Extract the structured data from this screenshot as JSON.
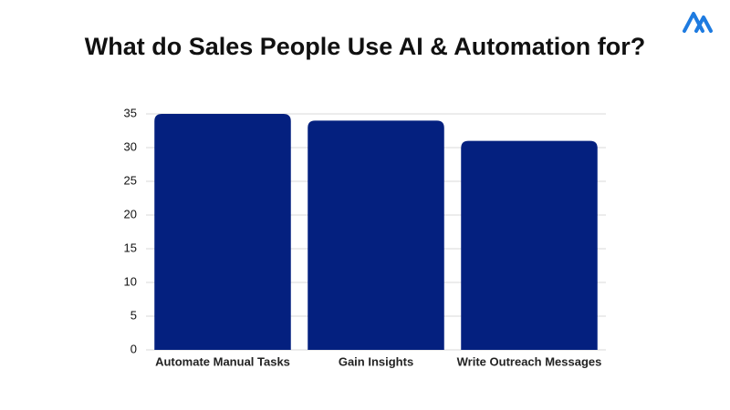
{
  "chart_data": {
    "type": "bar",
    "title": "What do Sales People Use AI & Automation for?",
    "categories": [
      "Automate Manual Tasks",
      "Gain Insights",
      "Write Outreach Messages"
    ],
    "values": [
      35,
      34,
      31
    ],
    "color": "#04207f",
    "ylim": [
      0,
      35
    ],
    "yticks": [
      0,
      5,
      10,
      15,
      20,
      25,
      30,
      35
    ],
    "grid": true
  }
}
